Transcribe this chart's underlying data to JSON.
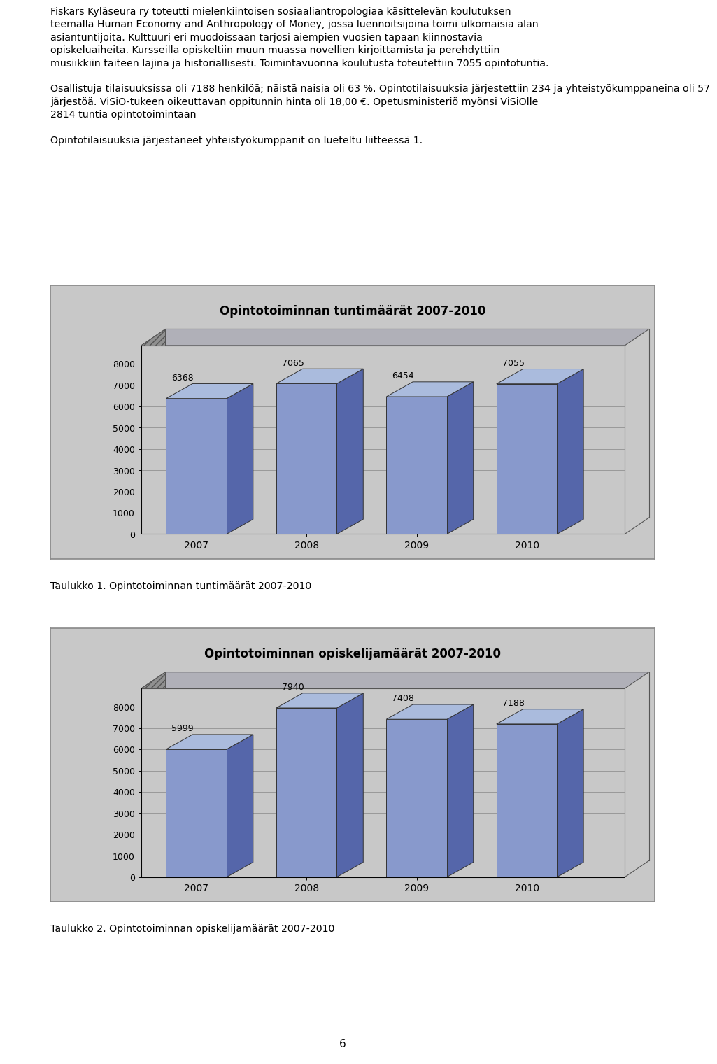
{
  "page_text_1": "Fiskars Kyläseura ry toteutti mielenkiintoisen sosiaaliantropologiaa käsittelevän koulutuksen teemalla Human Economy and Anthropology of Money, jossa luennoitsijoina toimi ulkomaisia alan asiantuntijoita. Kulttuuri eri muodoissaan tarjosi aiempien vuosien tapaan kiinnostavia opiskeluaiheita. Kursseilla opiskeltiin muun muassa novellien kirjoittamista ja perehdyttiin musiikkiin taiteen lajina ja historiallisesti. Toimintavuonna koulutusta toteutettiin 7055 opintotuntia.",
  "page_text_2": "Osallistuja tilaisuuksissa oli 7188 henkilöä; näistä naisia oli 63 %. Opintotilaisuuksia järjestettiin 234 ja yhteistyökumppaneina oli 57 järjestöä. ViSiO-tukeen oikeuttavan oppitunnin hinta oli 18,00 €. Opetusministeriö myönsi ViSiOlle 2814 tuntia opintotoimintaan",
  "page_text_3": "Opintotilaisuuksia järjestäneet yhteistyökumppanit on lueteltu liitteessä 1.",
  "chart1": {
    "title": "Opintotoiminnan tuntimäärät 2007-2010",
    "years": [
      "2007",
      "2008",
      "2009",
      "2010"
    ],
    "values": [
      6368,
      7065,
      6454,
      7055
    ],
    "ylim": [
      0,
      8000
    ],
    "yticks": [
      0,
      1000,
      2000,
      3000,
      4000,
      5000,
      6000,
      7000,
      8000
    ],
    "caption": "Taulukko 1. Opintotoiminnan tuntimäärät 2007-2010"
  },
  "chart2": {
    "title": "Opintotoiminnan opiskelijamäärät 2007-2010",
    "years": [
      "2007",
      "2008",
      "2009",
      "2010"
    ],
    "values": [
      5999,
      7940,
      7408,
      7188
    ],
    "ylim": [
      0,
      8000
    ],
    "yticks": [
      0,
      1000,
      2000,
      3000,
      4000,
      5000,
      6000,
      7000,
      8000
    ],
    "caption": "Taulukko 2. Opintotoiminnan opiskelijamäärät 2007-2010"
  },
  "bar_face_color": "#8899cc",
  "bar_side_color": "#5566aa",
  "bar_top_color": "#aabbdd",
  "chart_border_color": "#888888",
  "chart_outer_bg": "#c8c8c8",
  "chart_plot_bg": "#c8c8c8",
  "chart_top_shelf_bg": "#b0b0b8",
  "chart_left_wall_bg": "#909090",
  "grid_color": "#999999",
  "page_number": "6",
  "background_color": "#ffffff",
  "text_font_size": 10.5,
  "caption_font_size": 10.5,
  "title_font_size": 12
}
